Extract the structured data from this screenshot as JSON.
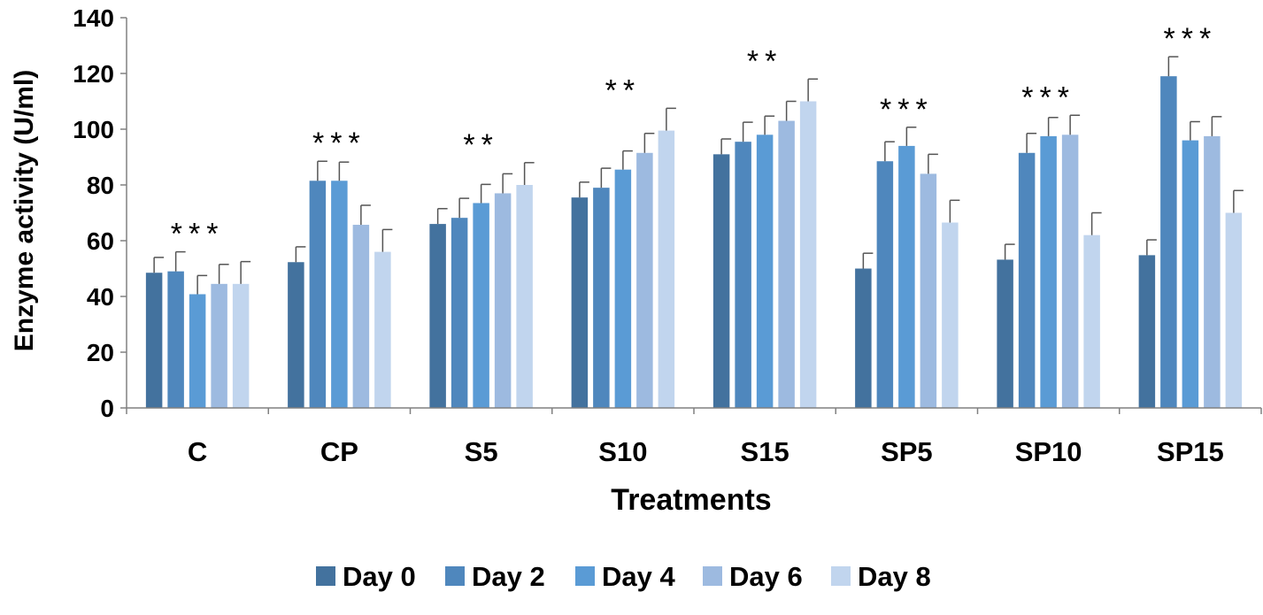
{
  "chart_data": {
    "type": "bar",
    "xlabel": "Treatments",
    "ylabel": "Enzyme activity (U/ml)",
    "ylim": [
      0,
      140
    ],
    "yticks": [
      0,
      20,
      40,
      60,
      80,
      100,
      120,
      140
    ],
    "grid": false,
    "legend_position": "bottom",
    "categories": [
      "C",
      "CP",
      "S5",
      "S10",
      "S15",
      "SP5",
      "SP10",
      "SP15"
    ],
    "significance": [
      "***",
      "***",
      "**",
      "**",
      "**",
      "***",
      "***",
      "***"
    ],
    "series": [
      {
        "name": "Day 0",
        "color": "#43729e",
        "values": [
          48.5,
          52.3,
          66.0,
          75.5,
          91.0,
          50.0,
          53.2,
          54.8
        ],
        "errors": [
          5.5,
          5.5,
          5.5,
          5.5,
          5.5,
          5.5,
          5.5,
          5.5
        ]
      },
      {
        "name": "Day 2",
        "color": "#4f87bd",
        "values": [
          49.0,
          81.5,
          68.2,
          79.0,
          95.5,
          88.5,
          91.5,
          119.0
        ],
        "errors": [
          7.0,
          7.0,
          7.0,
          7.0,
          7.0,
          7.0,
          7.0,
          7.0
        ]
      },
      {
        "name": "Day 4",
        "color": "#5a9bd5",
        "values": [
          40.8,
          81.5,
          73.5,
          85.5,
          98.0,
          94.0,
          97.5,
          96.0
        ],
        "errors": [
          6.7,
          6.7,
          6.7,
          6.7,
          6.7,
          6.7,
          6.7,
          6.7
        ]
      },
      {
        "name": "Day 6",
        "color": "#9dbae0",
        "values": [
          44.5,
          65.7,
          77.0,
          91.5,
          103.0,
          84.0,
          98.0,
          97.5
        ],
        "errors": [
          7.0,
          7.0,
          7.0,
          7.0,
          7.0,
          7.0,
          7.0,
          7.0
        ]
      },
      {
        "name": "Day 8",
        "color": "#c1d5ee",
        "values": [
          44.5,
          56.0,
          80.0,
          99.5,
          110.0,
          66.5,
          62.0,
          70.0
        ],
        "errors": [
          8.0,
          8.0,
          8.0,
          8.0,
          8.0,
          8.0,
          8.0,
          8.0
        ]
      }
    ]
  }
}
